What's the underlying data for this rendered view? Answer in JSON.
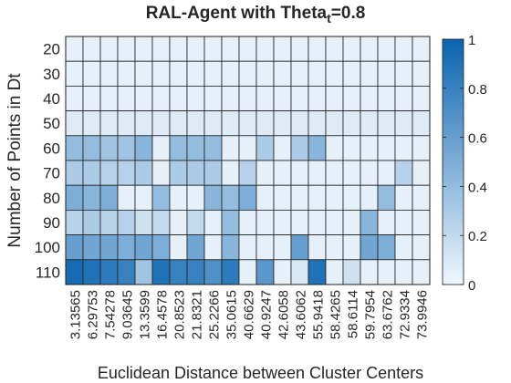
{
  "chart_data": {
    "type": "heatmap",
    "title": "RAL-Agent with Theta",
    "title_subscript": "t",
    "title_suffix": "=0.8",
    "xlabel": "Euclidean Distance between Cluster Centers",
    "ylabel": "Number of Points in Dt",
    "x_categories": [
      "3.13565",
      "6.29753",
      "7.54278",
      "9.03645",
      "13.3599",
      "16.4578",
      "20.8523",
      "21.8321",
      "25.2266",
      "35.0615",
      "40.6629",
      "40.9247",
      "42.6058",
      "43.6062",
      "55.9418",
      "58.4265",
      "58.6114",
      "59.7954",
      "63.6762",
      "72.9334",
      "73.9946"
    ],
    "y_categories": [
      "20",
      "30",
      "40",
      "50",
      "60",
      "70",
      "80",
      "90",
      "100",
      "110"
    ],
    "values": [
      [
        0.05,
        0.05,
        0.05,
        0.05,
        0.05,
        0.05,
        0.05,
        0.05,
        0.05,
        0.05,
        0.05,
        0.05,
        0.05,
        0.05,
        0.05,
        0.05,
        0.05,
        0.05,
        0.05,
        0.05,
        0.05
      ],
      [
        0.05,
        0.05,
        0.05,
        0.05,
        0.05,
        0.05,
        0.05,
        0.05,
        0.05,
        0.05,
        0.05,
        0.05,
        0.05,
        0.05,
        0.05,
        0.05,
        0.05,
        0.05,
        0.05,
        0.05,
        0.05
      ],
      [
        0.05,
        0.05,
        0.05,
        0.05,
        0.05,
        0.05,
        0.05,
        0.05,
        0.05,
        0.05,
        0.05,
        0.05,
        0.05,
        0.05,
        0.05,
        0.05,
        0.05,
        0.05,
        0.05,
        0.05,
        0.05
      ],
      [
        0.08,
        0.08,
        0.08,
        0.08,
        0.08,
        0.08,
        0.08,
        0.08,
        0.08,
        0.08,
        0.08,
        0.08,
        0.08,
        0.08,
        0.08,
        0.08,
        0.08,
        0.08,
        0.08,
        0.08,
        0.08
      ],
      [
        0.4,
        0.4,
        0.35,
        0.35,
        0.45,
        0.05,
        0.4,
        0.4,
        0.4,
        0.05,
        0.05,
        0.3,
        0.05,
        0.3,
        0.45,
        0.05,
        0.05,
        0.05,
        0.05,
        0.05,
        0.05
      ],
      [
        0.3,
        0.3,
        0.25,
        0.25,
        0.3,
        0.05,
        0.3,
        0.3,
        0.3,
        0.05,
        0.25,
        0.05,
        0.05,
        0.05,
        0.05,
        0.05,
        0.05,
        0.05,
        0.05,
        0.25,
        0.05
      ],
      [
        0.5,
        0.45,
        0.5,
        0.05,
        0.05,
        0.4,
        0.05,
        0.05,
        0.45,
        0.4,
        0.5,
        0.05,
        0.05,
        0.05,
        0.05,
        0.05,
        0.05,
        0.05,
        0.4,
        0.05,
        0.05
      ],
      [
        0.25,
        0.3,
        0.25,
        0.25,
        0.15,
        0.2,
        0.05,
        0.2,
        0.05,
        0.4,
        0.05,
        0.05,
        0.05,
        0.05,
        0.05,
        0.05,
        0.05,
        0.45,
        0.05,
        0.05,
        0.05
      ],
      [
        0.6,
        0.55,
        0.55,
        0.5,
        0.55,
        0.5,
        0.05,
        0.55,
        0.05,
        0.45,
        0.05,
        0.05,
        0.05,
        0.6,
        0.05,
        0.05,
        0.05,
        0.55,
        0.5,
        0.05,
        0.05
      ],
      [
        0.95,
        0.9,
        0.85,
        0.8,
        0.35,
        0.9,
        0.8,
        0.8,
        0.7,
        0.85,
        0.05,
        0.65,
        0.05,
        0.1,
        0.9,
        0.05,
        0.15,
        0.05,
        0.05,
        0.05,
        0.05
      ]
    ],
    "colorbar": {
      "min": 0,
      "max": 1,
      "ticks": [
        "0",
        "0.2",
        "0.4",
        "0.6",
        "0.8",
        "1"
      ]
    },
    "colors": {
      "low": "#f0f7fd",
      "high": "#0a64b0",
      "grid": "#1f1f1f",
      "text": "#262626"
    }
  }
}
